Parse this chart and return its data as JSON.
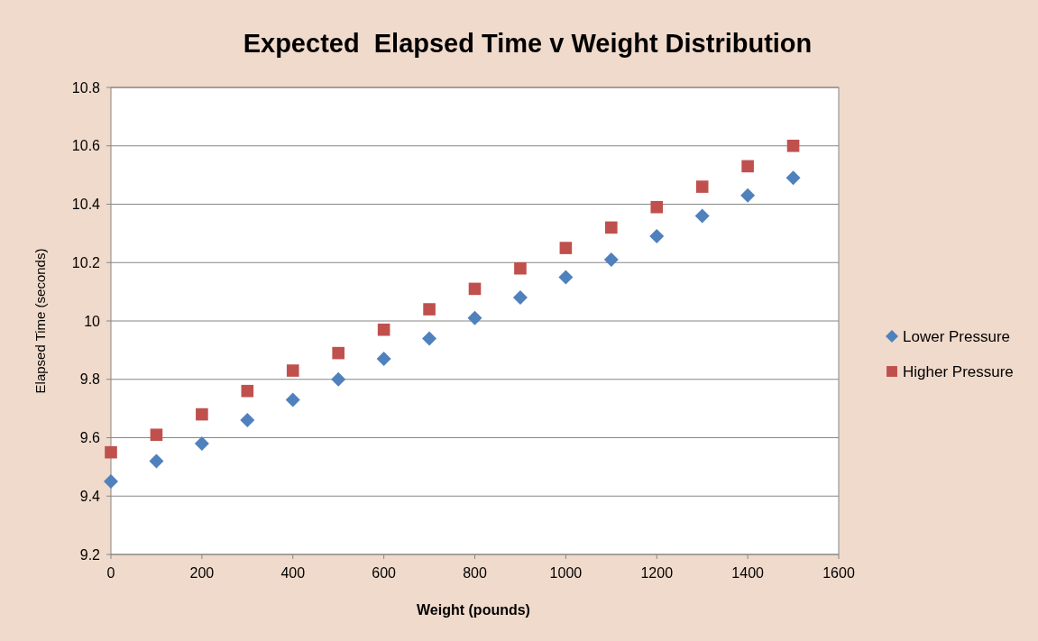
{
  "chart_data": {
    "type": "scatter",
    "title": "Expected  Elapsed Time v Weight Distribution",
    "xlabel": "Weight (pounds)",
    "ylabel": "Elapsed Time (seconds)",
    "x": [
      0,
      100,
      200,
      300,
      400,
      500,
      600,
      700,
      800,
      900,
      1000,
      1100,
      1200,
      1300,
      1400,
      1500
    ],
    "series": [
      {
        "name": "Lower Pressure",
        "color": "#4f81bd",
        "marker": "diamond",
        "values": [
          9.45,
          9.52,
          9.58,
          9.66,
          9.73,
          9.8,
          9.87,
          9.94,
          10.01,
          10.08,
          10.15,
          10.21,
          10.29,
          10.36,
          10.43,
          10.49
        ]
      },
      {
        "name": "Higher Pressure",
        "color": "#c0504d",
        "marker": "square",
        "values": [
          9.55,
          9.61,
          9.68,
          9.76,
          9.83,
          9.89,
          9.97,
          10.04,
          10.11,
          10.18,
          10.25,
          10.32,
          10.39,
          10.46,
          10.53,
          10.6
        ]
      }
    ],
    "xlim": [
      0,
      1600
    ],
    "xticks": [
      0,
      200,
      400,
      600,
      800,
      1000,
      1200,
      1400,
      1600
    ],
    "ylim": [
      9.2,
      10.8
    ],
    "yticks": [
      9.2,
      9.4,
      9.6,
      9.8,
      10,
      10.2,
      10.4,
      10.6,
      10.8
    ],
    "grid": "y",
    "legend": "right"
  }
}
